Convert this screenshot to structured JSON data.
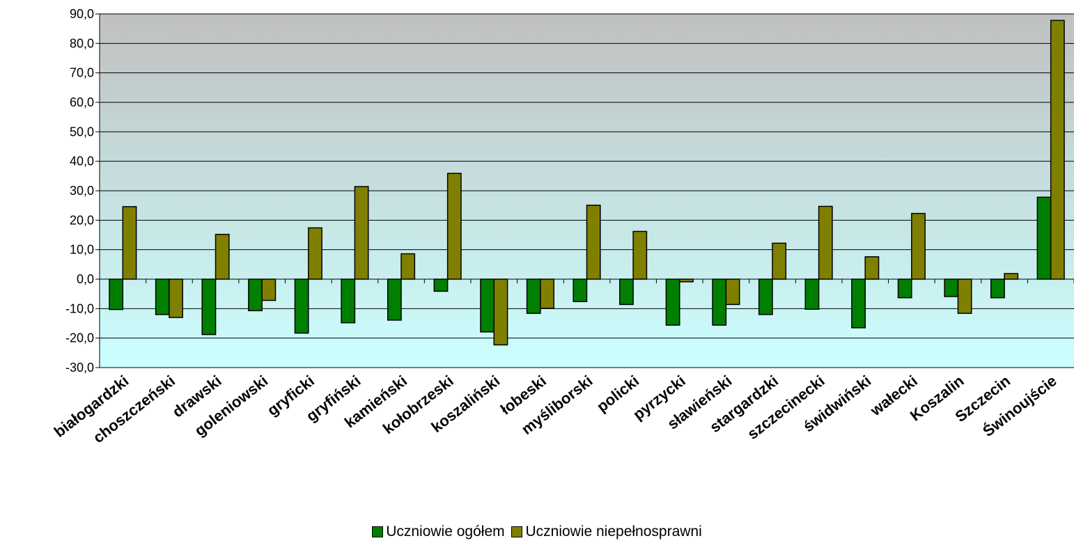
{
  "chart_data": {
    "type": "bar",
    "title": "",
    "xlabel": "",
    "ylabel": "",
    "ylim": [
      -30,
      90
    ],
    "ytick_step": 10,
    "ytick_labels": [
      "90,0",
      "80,0",
      "70,0",
      "60,0",
      "50,0",
      "40,0",
      "30,0",
      "20,0",
      "10,0",
      "0,0",
      "-10,0",
      "-20,0",
      "-30,0"
    ],
    "grid": true,
    "legend_position": "bottom",
    "categories": [
      "białogardzki",
      "choszczeński",
      "drawski",
      "goleniowski",
      "gryficki",
      "gryfiński",
      "kamieński",
      "kołobrzeski",
      "koszaliński",
      "łobeski",
      "myśliborski",
      "policki",
      "pyrzycki",
      "sławieński",
      "stargardzki",
      "szczecinecki",
      "świdwiński",
      "wałecki",
      "Koszalin",
      "Szczecin",
      "Świnoujście"
    ],
    "series": [
      {
        "name": "Uczniowie ogółem",
        "color": "#007F00",
        "values": [
          -10.3,
          -12.0,
          -18.8,
          -10.7,
          -18.3,
          -14.8,
          -13.9,
          -4.1,
          -17.9,
          -11.6,
          -7.6,
          -8.6,
          -15.6,
          -15.6,
          -12.0,
          -10.2,
          -16.5,
          -6.3,
          -5.9,
          -6.3,
          27.8
        ]
      },
      {
        "name": "Uczniowie niepełnosprawni",
        "color": "#808000",
        "values": [
          24.6,
          -13.0,
          15.2,
          -7.2,
          17.4,
          31.4,
          8.6,
          35.9,
          -22.3,
          -9.9,
          25.1,
          16.2,
          -0.9,
          -8.6,
          12.2,
          24.7,
          7.6,
          22.3,
          -11.6,
          1.9,
          87.8
        ]
      }
    ],
    "plot_background": {
      "top": "#C0C0C0",
      "bottom": "#CCFFFF"
    }
  }
}
